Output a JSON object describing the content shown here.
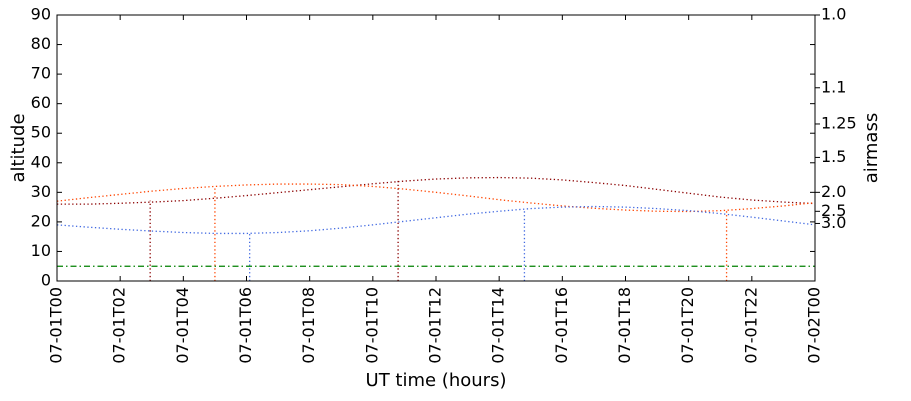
{
  "chart_data": {
    "type": "line",
    "xlabel": "UT time (hours)",
    "ylabel": "altitude",
    "y2label": "airmass",
    "xlim": [
      0,
      24
    ],
    "xticks": [
      {
        "value": 0,
        "label": "07-01T00"
      },
      {
        "value": 2,
        "label": "07-01T02"
      },
      {
        "value": 4,
        "label": "07-01T04"
      },
      {
        "value": 6,
        "label": "07-01T06"
      },
      {
        "value": 8,
        "label": "07-01T08"
      },
      {
        "value": 10,
        "label": "07-01T10"
      },
      {
        "value": 12,
        "label": "07-01T12"
      },
      {
        "value": 14,
        "label": "07-01T14"
      },
      {
        "value": 16,
        "label": "07-01T16"
      },
      {
        "value": 18,
        "label": "07-01T18"
      },
      {
        "value": 20,
        "label": "07-01T20"
      },
      {
        "value": 22,
        "label": "07-01T22"
      },
      {
        "value": 24,
        "label": "07-02T00"
      }
    ],
    "ylim": [
      0,
      90
    ],
    "yticks": [
      0,
      10,
      20,
      30,
      40,
      50,
      60,
      70,
      80,
      90
    ],
    "y2scale": "airmass",
    "y2ticks": [
      {
        "value": 1,
        "label": "1.0"
      },
      1.1,
      1.25,
      1.5,
      {
        "value": 2,
        "label": "2.0"
      },
      2.5,
      {
        "value": 3,
        "label": "3.0"
      }
    ],
    "series": [
      {
        "color": "#8b0000",
        "style": "dotted",
        "x": [
          0,
          1,
          2,
          3,
          4,
          5,
          6,
          7,
          8,
          9,
          10,
          11,
          12,
          13,
          14,
          15,
          16,
          17,
          18,
          19,
          20,
          21,
          22,
          23,
          24
        ],
        "values": [
          26,
          26,
          26.3,
          26.7,
          27.2,
          28,
          28.9,
          29.9,
          30.9,
          31.9,
          32.9,
          33.8,
          34.5,
          34.9,
          35,
          34.8,
          34.2,
          33.3,
          32.3,
          31,
          29.7,
          28.4,
          27.4,
          26.7,
          26.2
        ]
      },
      {
        "color": "#ff4500",
        "style": "dotted",
        "x": [
          0,
          1,
          2,
          3,
          4,
          5,
          6,
          7,
          8,
          9,
          10,
          11,
          12,
          13,
          14,
          15,
          16,
          17,
          18,
          19,
          20,
          21,
          22,
          23,
          24
        ],
        "values": [
          27,
          28.2,
          29.3,
          30.4,
          31.3,
          32,
          32.5,
          32.8,
          32.8,
          32.6,
          32,
          31.1,
          30,
          28.8,
          27.5,
          26.4,
          25.4,
          24.6,
          24,
          23.6,
          23.5,
          23.8,
          24.5,
          25.4,
          26.5
        ]
      },
      {
        "color": "#4169e1",
        "style": "dotted",
        "x": [
          0,
          1,
          2,
          3,
          4,
          5,
          6,
          7,
          8,
          9,
          10,
          11,
          12,
          13,
          14,
          15,
          16,
          17,
          18,
          19,
          20,
          21,
          22,
          23,
          24
        ],
        "values": [
          19,
          18.2,
          17.5,
          16.9,
          16.4,
          16.1,
          16.1,
          16.4,
          17,
          17.9,
          19,
          20.2,
          21.4,
          22.6,
          23.6,
          24.5,
          25,
          25.2,
          25,
          24.5,
          23.8,
          22.8,
          21.6,
          20.3,
          19
        ]
      },
      {
        "color": "#8b0000",
        "style": "dotted",
        "x": [
          2.95,
          2.95
        ],
        "values": [
          0,
          27.2
        ]
      },
      {
        "color": "#ff4500",
        "style": "dotted",
        "x": [
          5.0,
          5.0
        ],
        "values": [
          0,
          32
        ]
      },
      {
        "color": "#4169e1",
        "style": "dotted",
        "x": [
          6.1,
          6.1
        ],
        "values": [
          0,
          16.2
        ]
      },
      {
        "color": "#8b0000",
        "style": "dotted",
        "x": [
          10.8,
          10.8
        ],
        "values": [
          0,
          34.4
        ]
      },
      {
        "color": "#4169e1",
        "style": "dotted",
        "x": [
          14.8,
          14.8
        ],
        "values": [
          0,
          24.4
        ]
      },
      {
        "color": "#ff4500",
        "style": "dotted",
        "x": [
          21.2,
          21.2
        ],
        "values": [
          0,
          23.6
        ]
      },
      {
        "color": "#008000",
        "style": "dashdot",
        "x": [
          0,
          24
        ],
        "values": [
          5,
          5
        ]
      }
    ]
  }
}
